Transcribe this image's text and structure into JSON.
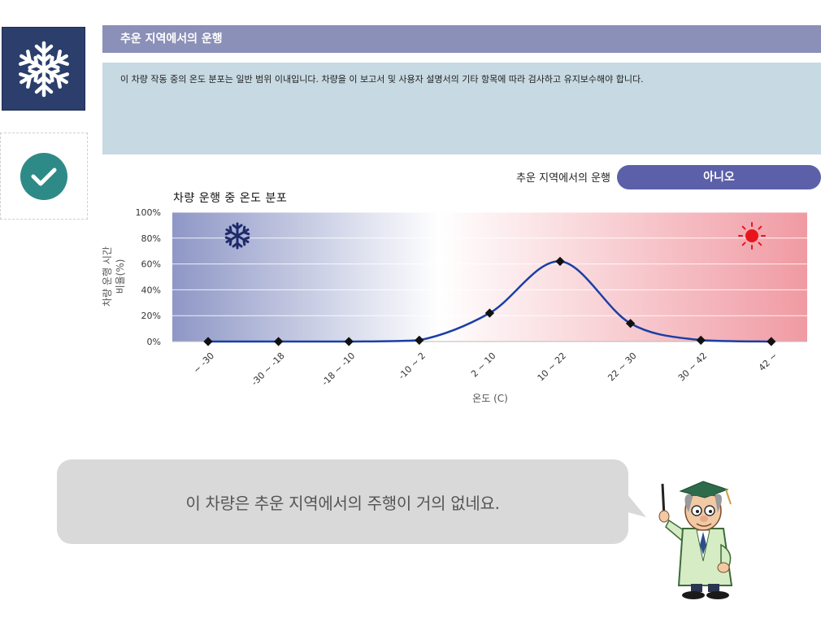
{
  "sidebar": {
    "snow_icon": "snowflake-icon",
    "check_icon": "check-circle-icon",
    "colors": {
      "snow_bg": "#2b3e6c",
      "check": "#2e8a87"
    }
  },
  "section": {
    "title": "추운 지역에서의 운행",
    "description": "이 차량 작동 중의 온도 분포는 일반 범위 이내입니다. 차량을 이 보고서 및 사용자 설명서의 기타 항목에 따라 검사하고 유지보수해야 합니다.",
    "colors": {
      "header_bg": "#8a90b8",
      "desc_bg": "#c7d9e2"
    }
  },
  "status": {
    "label": "추운 지역에서의 운행",
    "value": "아니오",
    "color": "#5b60a8"
  },
  "chart_data": {
    "type": "line",
    "title": "차량 운행 중 온도 분포",
    "xlabel": "온도 (C)",
    "ylabel_line1": "차량 운행 시간",
    "ylabel_line2": "비율(%)",
    "categories": [
      "~ -30",
      "-30 ~ -18",
      "-18 ~ -10",
      "-10 ~ 2",
      "2 ~ 10",
      "10 ~ 22",
      "22 ~ 30",
      "30 ~ 42",
      "42 ~"
    ],
    "values": [
      0,
      0,
      0,
      1,
      22,
      62,
      14,
      1,
      0
    ],
    "ylim": [
      0,
      100
    ],
    "yticks": [
      0,
      20,
      40,
      60,
      80,
      100
    ],
    "ytick_labels": [
      "0%",
      "20%",
      "40%",
      "60%",
      "80%",
      "100%"
    ],
    "grid": true,
    "line_color": "#1a3fa6",
    "cold_icon": "snowflake-icon",
    "hot_icon": "sun-icon",
    "gradient_colors": [
      "#8e97c6",
      "#ffffff",
      "#f09aa3"
    ]
  },
  "message": {
    "text": "이 차량은 추운 지역에서의 주행이 거의 없네요.",
    "character_icon": "professor-character-icon"
  }
}
